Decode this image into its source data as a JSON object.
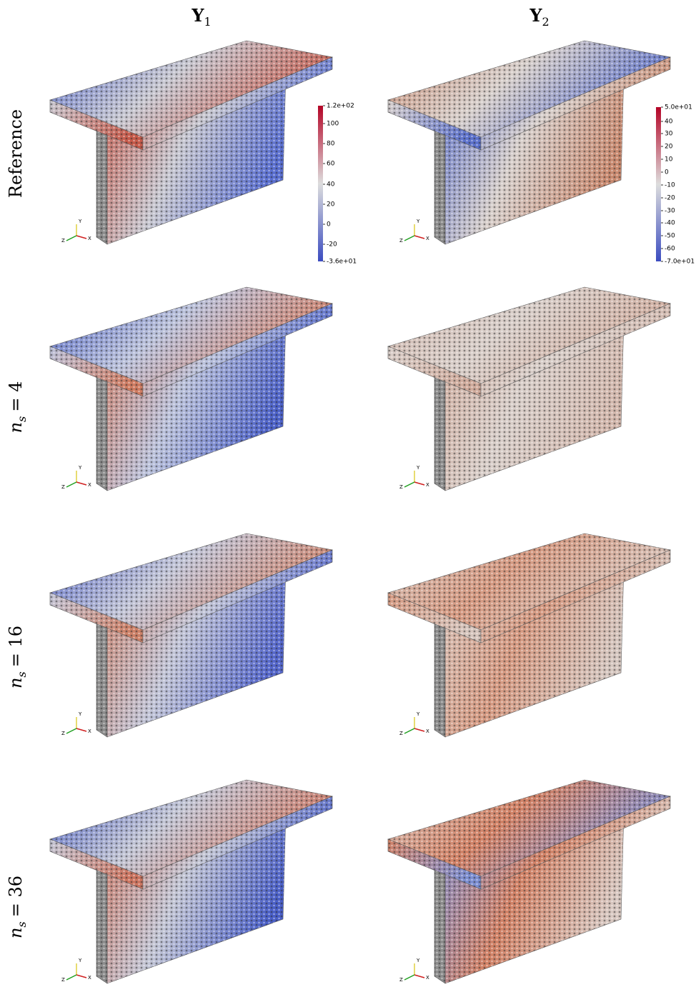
{
  "columns": [
    {
      "symbol": "Y",
      "subscript": "1",
      "colorbar": [
        "1.2e+02",
        "100",
        "80",
        "60",
        "40",
        "20",
        "0",
        "-20",
        "-3.6e+01"
      ]
    },
    {
      "symbol": "Y",
      "subscript": "2",
      "colorbar": [
        "5.0e+01",
        "40",
        "30",
        "20",
        "10",
        "0",
        "-10",
        "-20",
        "-30",
        "-40",
        "-50",
        "-60",
        "-7.0e+01"
      ]
    }
  ],
  "rows": [
    {
      "label": "Reference"
    },
    {
      "variable": "n",
      "subscript": "s",
      "relation": "= 4"
    },
    {
      "variable": "n",
      "subscript": "s",
      "relation": "= 16"
    },
    {
      "variable": "n",
      "subscript": "s",
      "relation": "= 36"
    }
  ],
  "axis_triad": {
    "x": "X",
    "y": "Y",
    "z": "Z"
  }
}
